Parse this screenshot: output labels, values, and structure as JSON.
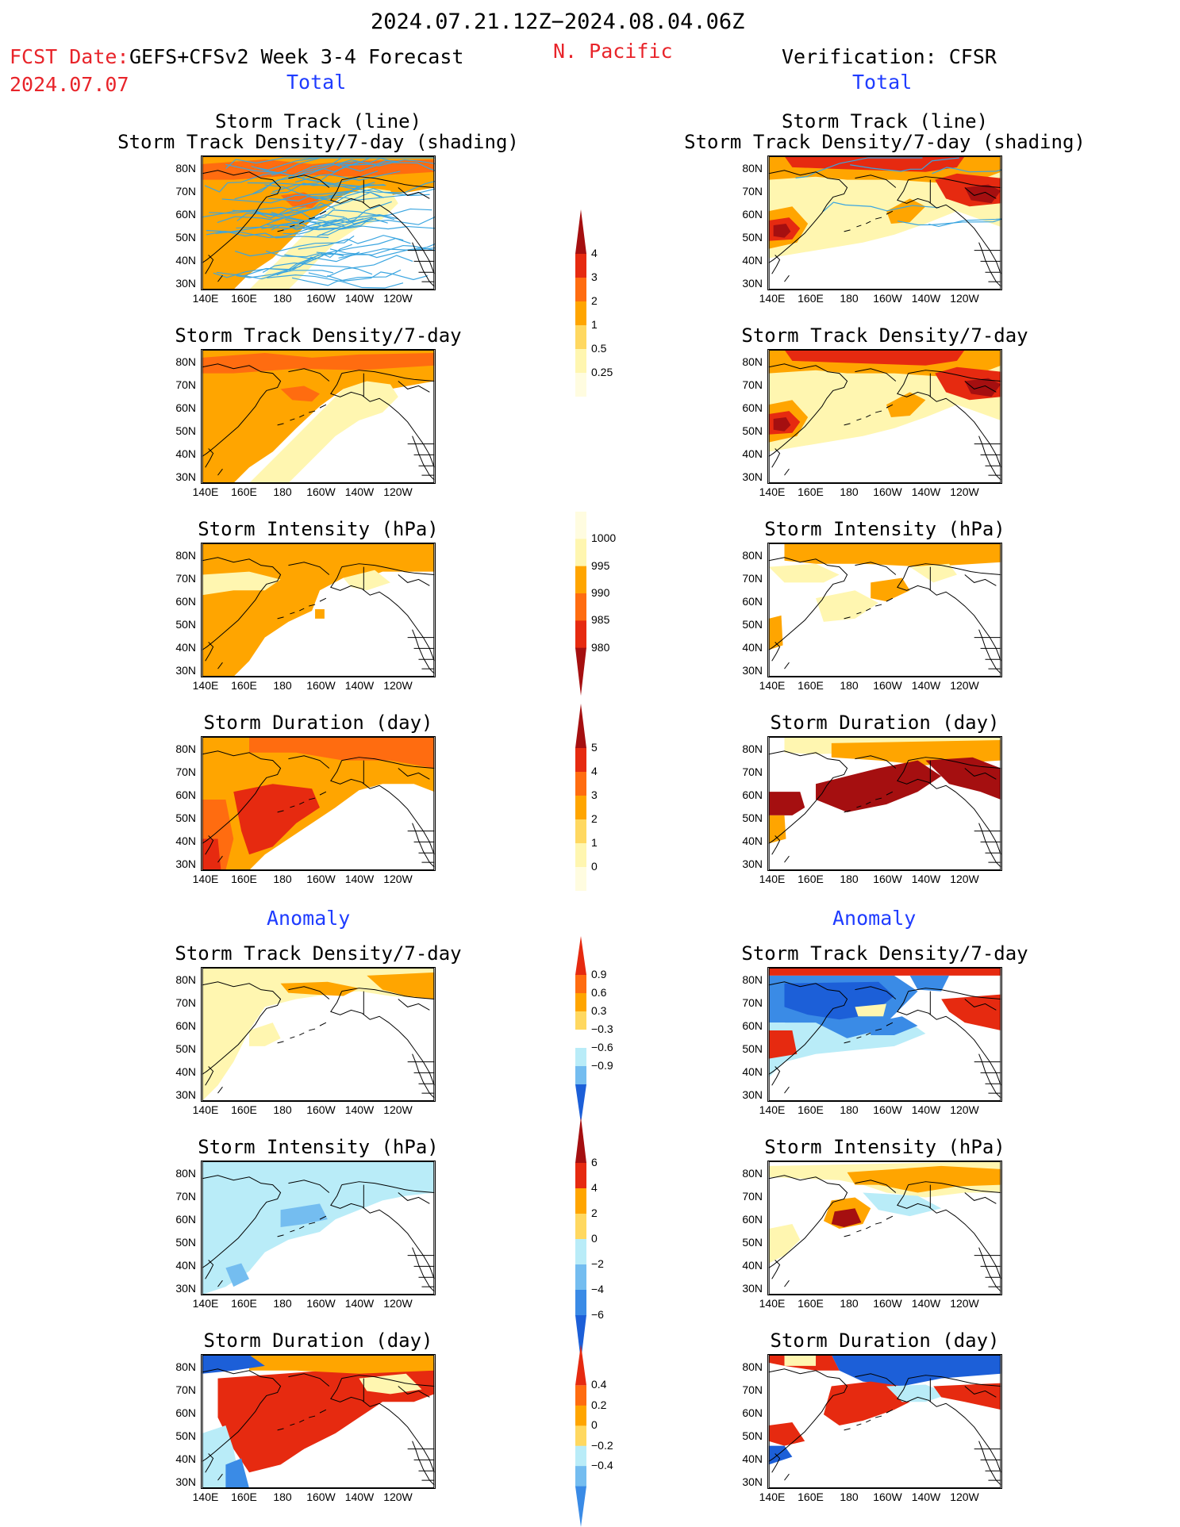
{
  "header": {
    "date_range": "2024.07.21.12Z−2024.08.04.06Z",
    "fcst_label": "FCST Date:",
    "fcst_title": "GEFS+CFSv2 Week 3-4 Forecast",
    "fcst_date": "2024.07.07",
    "region": "N. Pacific",
    "verification": "Verification: CFSR",
    "left_total": "Total",
    "right_total": "Total",
    "left_anomaly": "Anomaly",
    "right_anomaly": "Anomaly"
  },
  "panels": {
    "track_line": "Storm Track (line)",
    "track_shading": "Storm Track Density/7-day (shading)",
    "density": "Storm Track Density/7-day",
    "intensity": "Storm Intensity (hPa)",
    "duration": "Storm Duration (day)"
  },
  "axes": {
    "lat": [
      "80N",
      "70N",
      "60N",
      "50N",
      "40N",
      "30N"
    ],
    "lon": [
      "140E",
      "160E",
      "180",
      "160W",
      "140W",
      "120W"
    ]
  },
  "colorbars": {
    "density_total": [
      "4",
      "3",
      "2",
      "1",
      "0.5",
      "0.25"
    ],
    "intensity_total": [
      "1000",
      "995",
      "990",
      "985",
      "980"
    ],
    "duration_total": [
      "5",
      "4",
      "3",
      "2",
      "1",
      "0"
    ],
    "density_anom": [
      "0.9",
      "0.6",
      "0.3",
      "−0.3",
      "−0.6",
      "−0.9"
    ],
    "intensity_anom": [
      "6",
      "4",
      "2",
      "0",
      "−2",
      "−4",
      "−6"
    ],
    "duration_anom": [
      "0.4",
      "0.2",
      "0",
      "−0.2",
      "−0.4"
    ]
  },
  "colors": {
    "light_yellow": "#fff6b0",
    "yellow": "#ffd860",
    "orange": "#ffa500",
    "dark_orange": "#ff6c10",
    "red": "#e62a10",
    "dark_red": "#a50f10",
    "light_blue": "#b9ecf8",
    "mid_blue": "#74bdf0",
    "blue": "#3a8be6",
    "dark_blue": "#1c5fd8",
    "track_line": "#3aa5e0"
  }
}
